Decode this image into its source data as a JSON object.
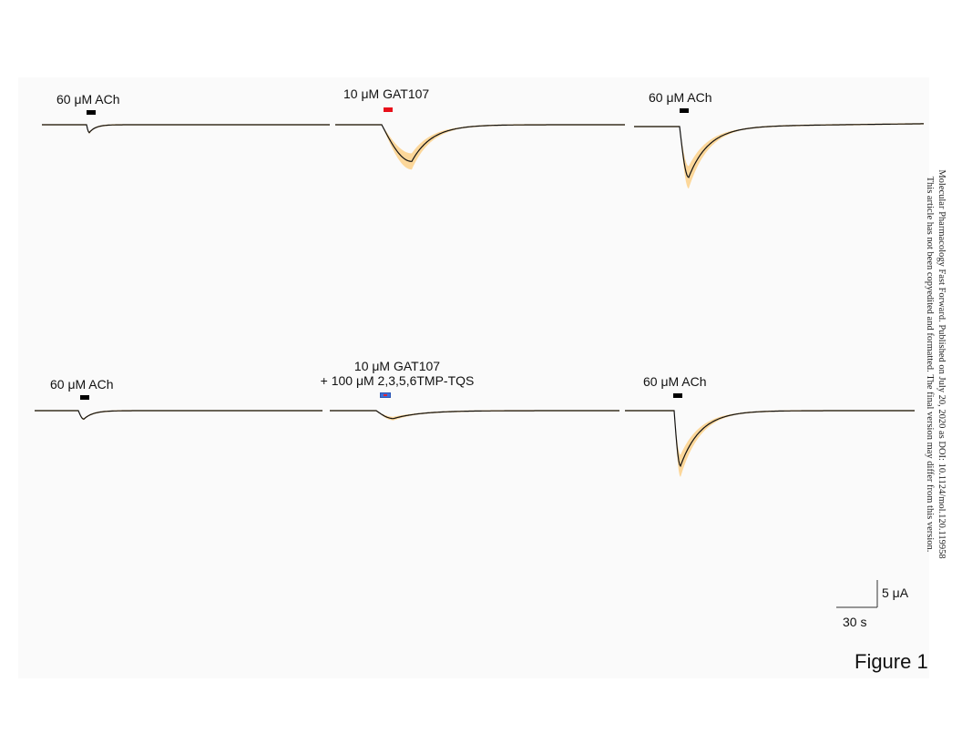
{
  "figure": {
    "caption": "Figure 1",
    "side_note": {
      "line1": "Molecular Pharmacology Fast Forward. Published on July 20, 2020 as DOI: 10.1124/mol.120.119958",
      "line2": "This article has not been copyedited and formatted. The final version may differ from this version."
    },
    "scale_bar": {
      "current_label": "5 μA",
      "time_label": "30 s",
      "current_uA": 5,
      "time_s": 30
    },
    "colors": {
      "trace": "#111111",
      "error_band": "#fcd79a",
      "baseline": "#888888",
      "ach_bar": "#000000",
      "gat107_bar": "#e8101a",
      "combo_bar": "#3b6fd8"
    },
    "panels": [
      {
        "row": "top",
        "traces": [
          {
            "label": "60 μM ACh",
            "application": "ACh",
            "peak_uA": -1.4
          },
          {
            "label": "10 μM GAT107",
            "application": "GAT107",
            "peak_uA": -6.5
          },
          {
            "label": "60 μM ACh",
            "application": "ACh",
            "peak_uA": -9.0
          }
        ]
      },
      {
        "row": "bottom",
        "traces": [
          {
            "label": "60 μM ACh",
            "application": "ACh",
            "peak_uA": -1.5
          },
          {
            "label_line1": "10 μM GAT107",
            "label_line2": "+ 100 μM 2,3,5,6TMP-TQS",
            "application": "GAT107+TQS",
            "peak_uA": -1.4
          },
          {
            "label": "60 μM ACh",
            "application": "ACh",
            "peak_uA": -9.8
          }
        ]
      }
    ]
  }
}
